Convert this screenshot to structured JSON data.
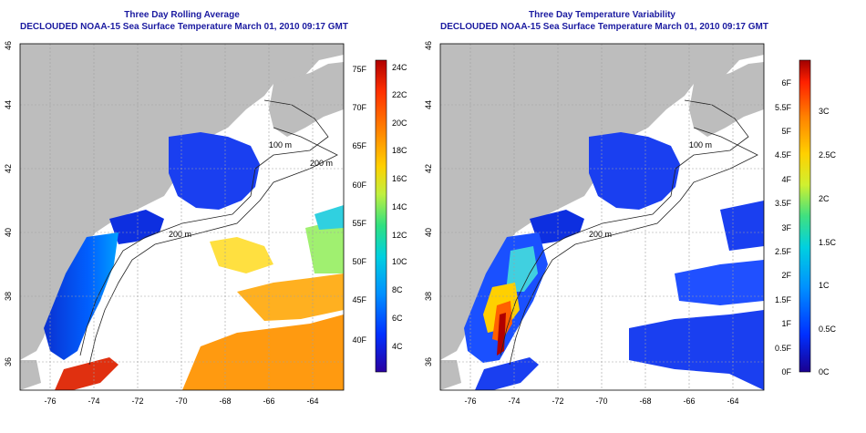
{
  "left_panel": {
    "title": "Three Day Rolling Average",
    "subtitle": "DECLOUDED NOAA-15 Sea Surface Temperature March 01, 2010 09:17 GMT",
    "colorbar": {
      "palette": [
        "#2a00a0",
        "#0030ff",
        "#0090ff",
        "#00d0e0",
        "#30e080",
        "#c0f040",
        "#ffd000",
        "#ff8000",
        "#ff3000",
        "#b00000"
      ],
      "right_labels": [
        "4C",
        "6C",
        "8C",
        "10C",
        "12C",
        "14C",
        "16C",
        "18C",
        "20C",
        "22C",
        "24C"
      ],
      "left_labels": [
        "40F",
        "45F",
        "50F",
        "55F",
        "60F",
        "65F",
        "70F",
        "75F"
      ]
    }
  },
  "right_panel": {
    "title": "Three Day Temperature Variability",
    "subtitle": "DECLOUDED NOAA-15 Sea Surface Temperature March 01, 2010 09:17 GMT",
    "colorbar": {
      "palette": [
        "#1a0090",
        "#0030ff",
        "#0090ff",
        "#00d0e0",
        "#40e080",
        "#d0f030",
        "#ffd000",
        "#ff8000",
        "#ff2000",
        "#a00000"
      ],
      "right_labels": [
        "0C",
        "0.5C",
        "1C",
        "1.5C",
        "2C",
        "2.5C",
        "3C"
      ],
      "left_labels": [
        "0F",
        "0.5F",
        "1F",
        "1.5F",
        "2F",
        "2.5F",
        "3F",
        "3.5F",
        "4F",
        "4.5F",
        "5F",
        "5.5F",
        "6F"
      ]
    }
  },
  "axes": {
    "x_ticks": [
      "-76",
      "-74",
      "-72",
      "-70",
      "-68",
      "-66",
      "-64"
    ],
    "y_ticks": [
      "36",
      "38",
      "40",
      "42",
      "44",
      "46"
    ]
  },
  "contour_labels": [
    "100 m",
    "200 m",
    "200 m",
    "200 m"
  ],
  "colors": {
    "land": "#bdbdbd",
    "ocean": "#ffffff",
    "grid": "#a0a0a0",
    "title": "#1a1aa0",
    "contour": "#222222"
  }
}
